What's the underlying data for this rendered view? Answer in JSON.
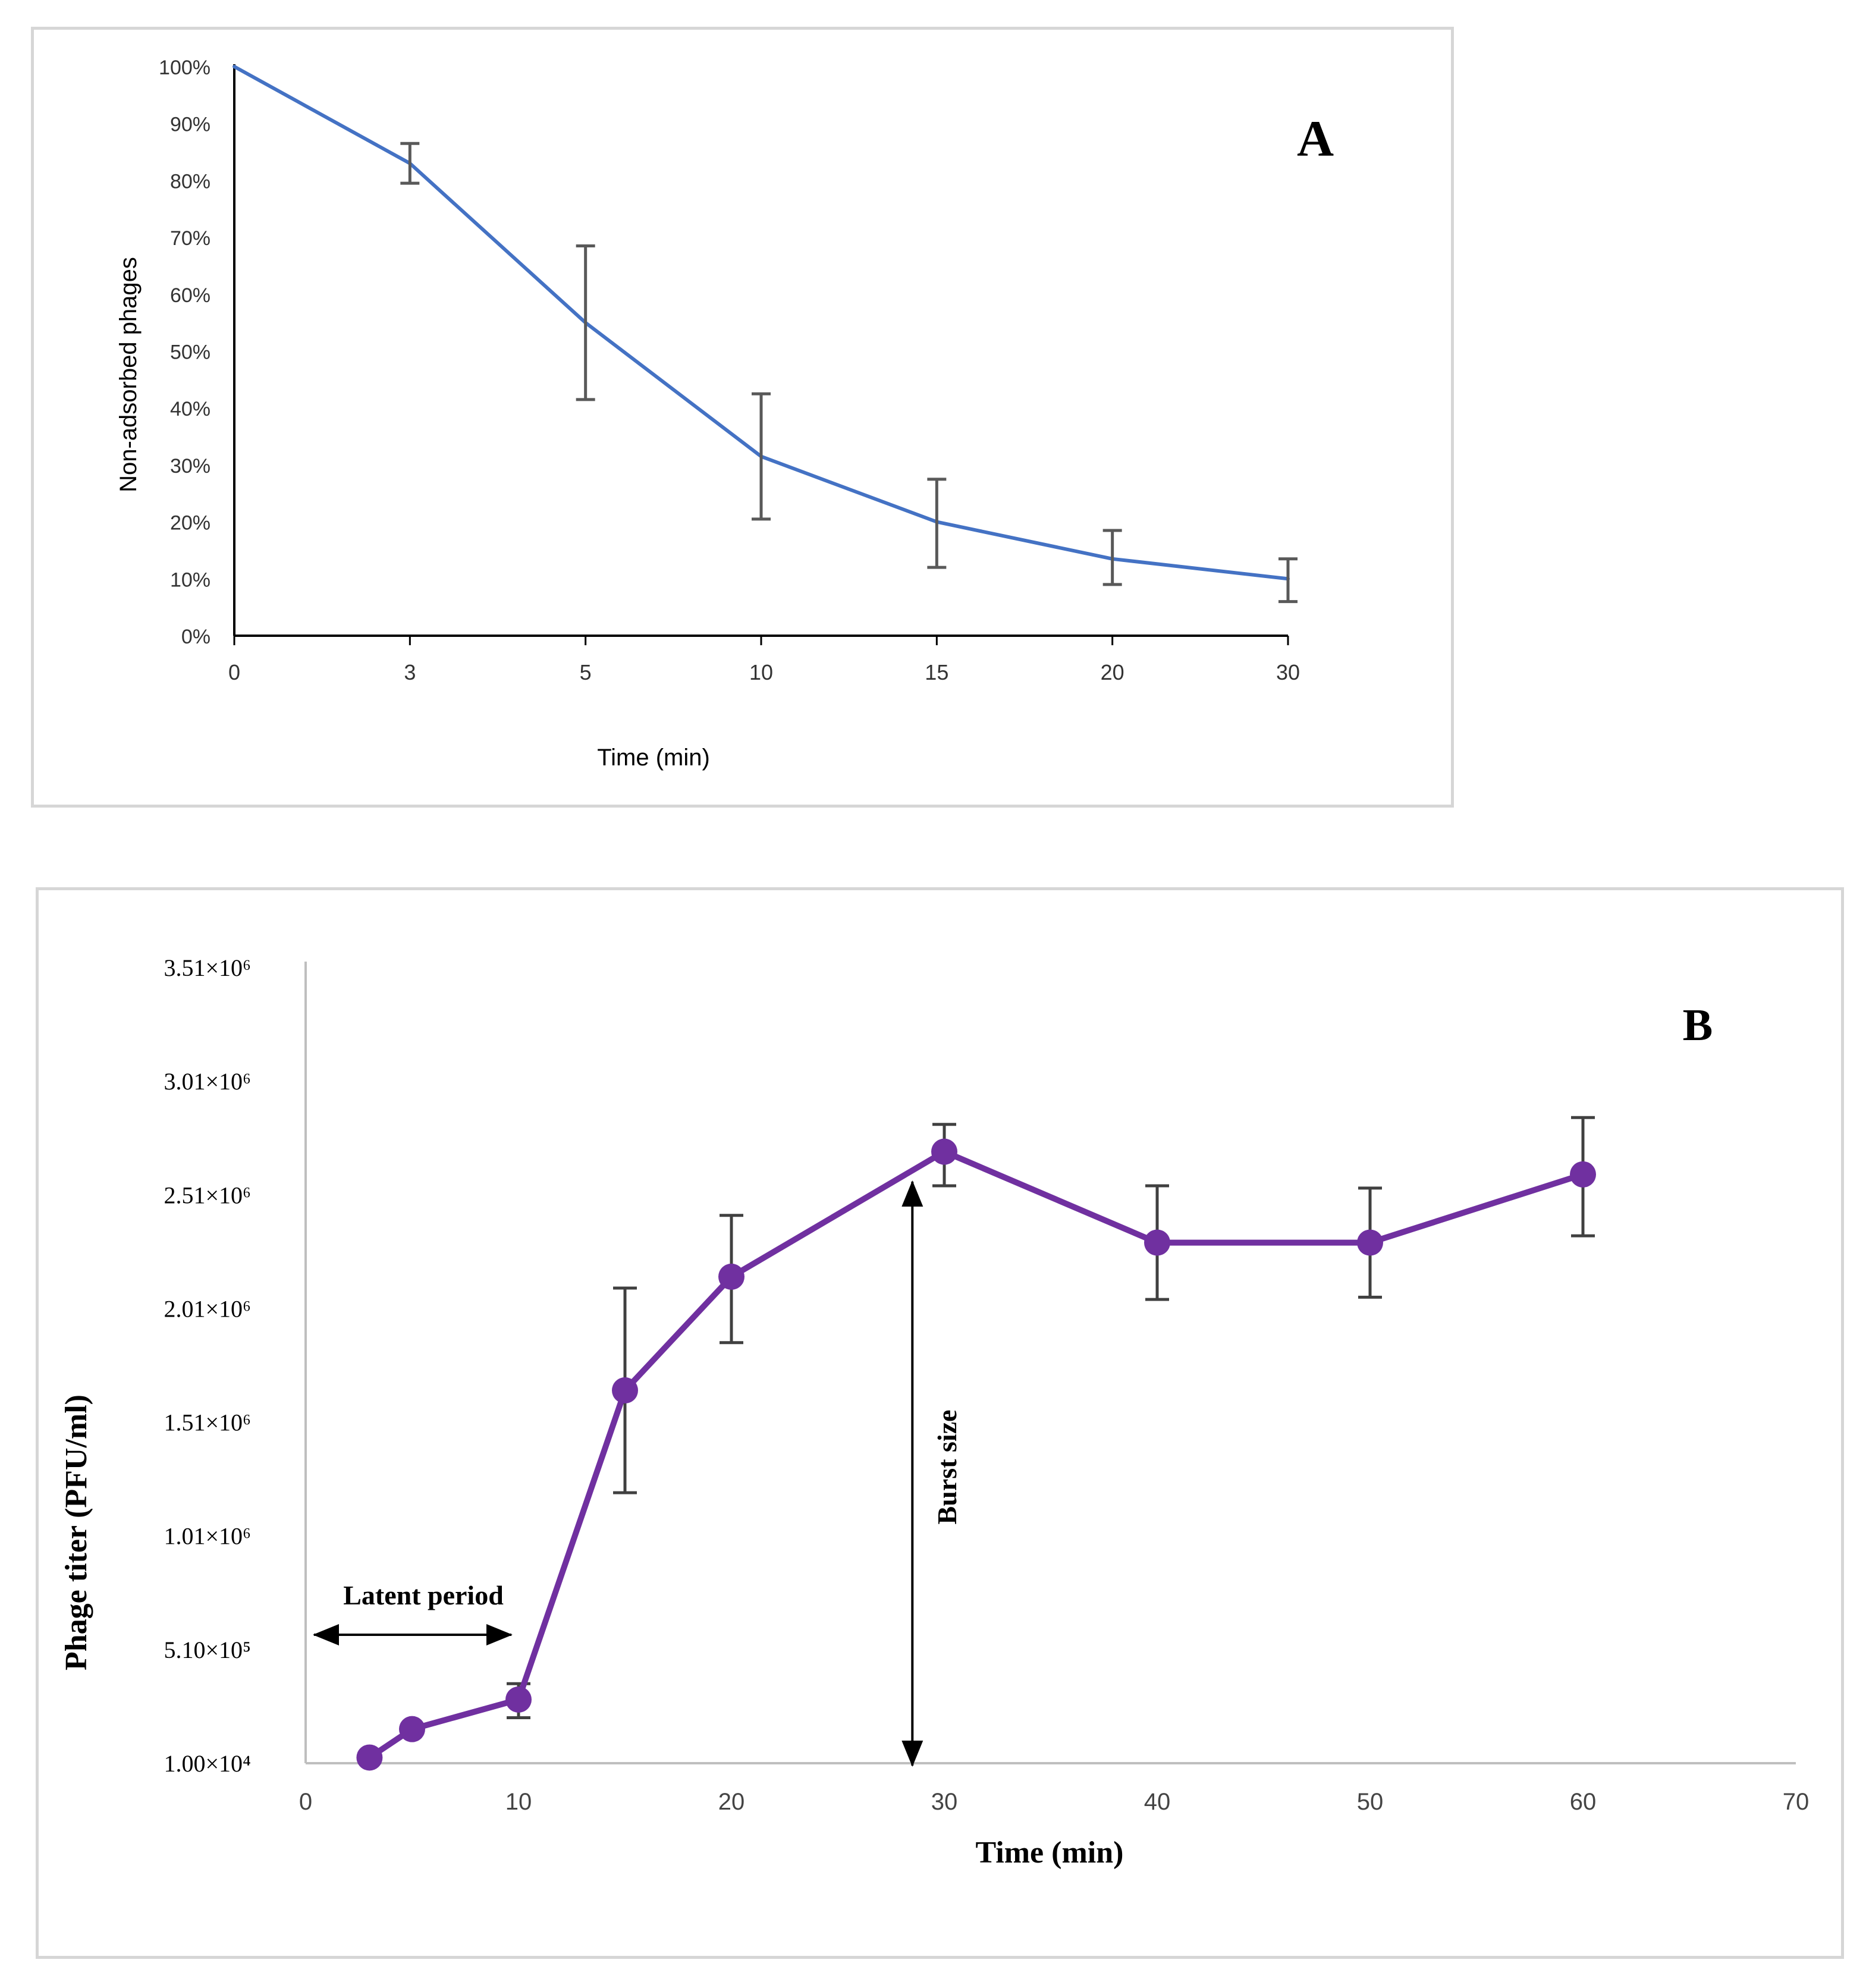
{
  "chart_data": [
    {
      "type": "line",
      "panel_label": "A",
      "title": "",
      "xlabel": "Time (min)",
      "ylabel": "Non-adsorbed phages",
      "x_axis_kind": "categorical",
      "categories": [
        "0",
        "3",
        "5",
        "10",
        "15",
        "20",
        "30"
      ],
      "y_tick_labels": [
        "0%",
        "10%",
        "20%",
        "30%",
        "40%",
        "50%",
        "60%",
        "70%",
        "80%",
        "90%",
        "100%"
      ],
      "ylim": [
        0,
        100
      ],
      "series": [
        {
          "name": "Non-adsorbed phages",
          "color": "#4472c4",
          "values": [
            100,
            83,
            55,
            31.5,
            20,
            13.5,
            10
          ],
          "err_low": [
            null,
            79.5,
            41.5,
            20.5,
            12,
            9,
            6
          ],
          "err_high": [
            null,
            86.5,
            68.5,
            42.5,
            27.5,
            18.5,
            13.5
          ]
        }
      ]
    },
    {
      "type": "line",
      "panel_label": "B",
      "title": "",
      "xlabel": "Time (min)",
      "ylabel": "Phage titer (PFU/ml)",
      "x_tick_labels": [
        "0",
        "10",
        "20",
        "30",
        "40",
        "50",
        "60",
        "70"
      ],
      "x_ticks": [
        0,
        10,
        20,
        30,
        40,
        50,
        60,
        70
      ],
      "xlim": [
        0,
        70
      ],
      "y_ticks": [
        {
          "label": "1.00×10⁴",
          "value": 10000
        },
        {
          "label": "5.10×10⁵",
          "value": 510000
        },
        {
          "label": "1.01×10⁶",
          "value": 1010000
        },
        {
          "label": "1.51×10⁶",
          "value": 1510000
        },
        {
          "label": "2.01×10⁶",
          "value": 2010000
        },
        {
          "label": "2.51×10⁶",
          "value": 2510000
        },
        {
          "label": "3.01×10⁶",
          "value": 3010000
        },
        {
          "label": "3.51×10⁶",
          "value": 3510000
        }
      ],
      "ylim": [
        10000,
        3510000
      ],
      "series": [
        {
          "name": "Phage titer",
          "color": "#7030a0",
          "x": [
            3,
            5,
            10,
            15,
            20,
            30,
            40,
            50,
            60
          ],
          "values": [
            35000,
            160000,
            290000,
            1650000,
            2150000,
            2700000,
            2300000,
            2300000,
            2600000
          ],
          "err_low": [
            null,
            null,
            210000,
            1200000,
            1860000,
            2550000,
            2050000,
            2060000,
            2330000
          ],
          "err_high": [
            null,
            null,
            360000,
            2100000,
            2420000,
            2820000,
            2550000,
            2540000,
            2850000
          ]
        }
      ],
      "annotations": {
        "latent_period": {
          "label": "Latent period",
          "x_from": 0,
          "x_to": 10
        },
        "burst_size": {
          "label": "Burst size",
          "x": 28.5
        }
      }
    }
  ]
}
